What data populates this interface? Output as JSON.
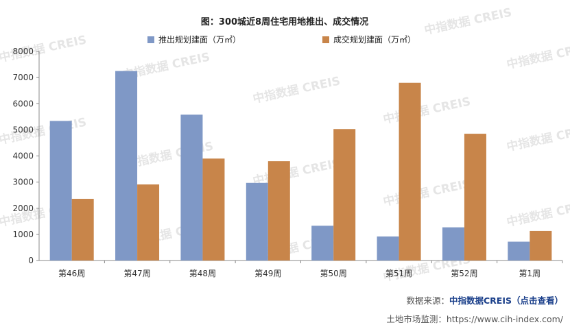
{
  "chart_data": {
    "type": "bar",
    "title": "图：300城近8周住宅用地推出、成交情况",
    "categories": [
      "第46周",
      "第47周",
      "第48周",
      "第49周",
      "第50周",
      "第51周",
      "第52周",
      "第1周"
    ],
    "series": [
      {
        "name": "推出规划建面（万㎡）",
        "color": "#7f98c6",
        "values": [
          5340,
          7250,
          5580,
          2970,
          1330,
          920,
          1270,
          720
        ]
      },
      {
        "name": "成交规划建面（万㎡）",
        "color": "#c8854a",
        "values": [
          2360,
          2910,
          3900,
          3800,
          5030,
          6800,
          4850,
          1130
        ]
      }
    ],
    "ylim": [
      0,
      8000
    ],
    "yticks": [
      0,
      1000,
      2000,
      3000,
      4000,
      5000,
      6000,
      7000,
      8000
    ],
    "grid": false,
    "legend": "top",
    "watermark": "中指数据 CREIS"
  },
  "footer": {
    "source_prefix": "数据来源：",
    "source_brand": "中指数据CREIS（点击查看）",
    "monitor": "土地市场监测：https://www.cih-index.com/"
  }
}
